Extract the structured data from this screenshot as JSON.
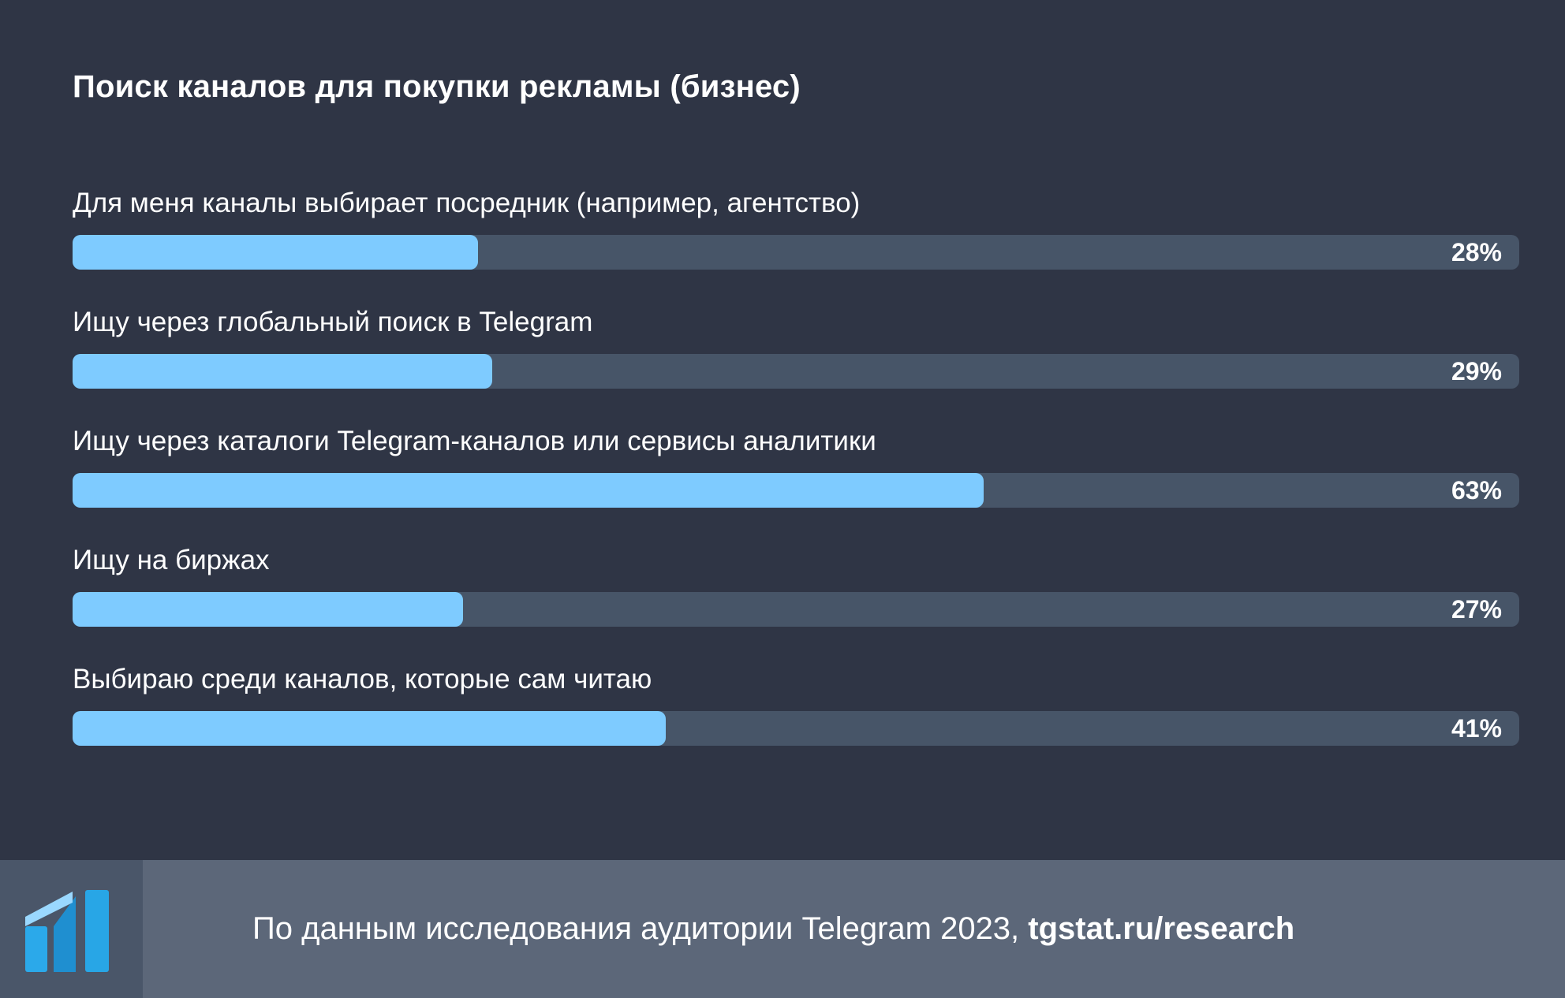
{
  "chart_data": {
    "type": "bar",
    "orientation": "horizontal",
    "title": "Поиск каналов для покупки рекламы (бизнес)",
    "categories": [
      "Для меня каналы выбирает посредник (например, агентство)",
      "Ищу через глобальный поиск в Telegram",
      "Ищу через каталоги Telegram-каналов или сервисы аналитики",
      "Ищу на биржах",
      "Выбираю среди каналов, которые сам читаю"
    ],
    "values": [
      28,
      29,
      63,
      27,
      41
    ],
    "value_labels": [
      "28%",
      "29%",
      "63%",
      "27%",
      "41%"
    ],
    "xlim": [
      0,
      100
    ],
    "grid": false,
    "colors": {
      "bar": "#7ecbff",
      "track": "#475568",
      "background": "#2f3545"
    }
  },
  "footer": {
    "source_text": "По данным исследования аудитории Telegram 2023,",
    "source_link": "tgstat.ru/research",
    "logo_icon": "tgstat-logo-icon"
  }
}
